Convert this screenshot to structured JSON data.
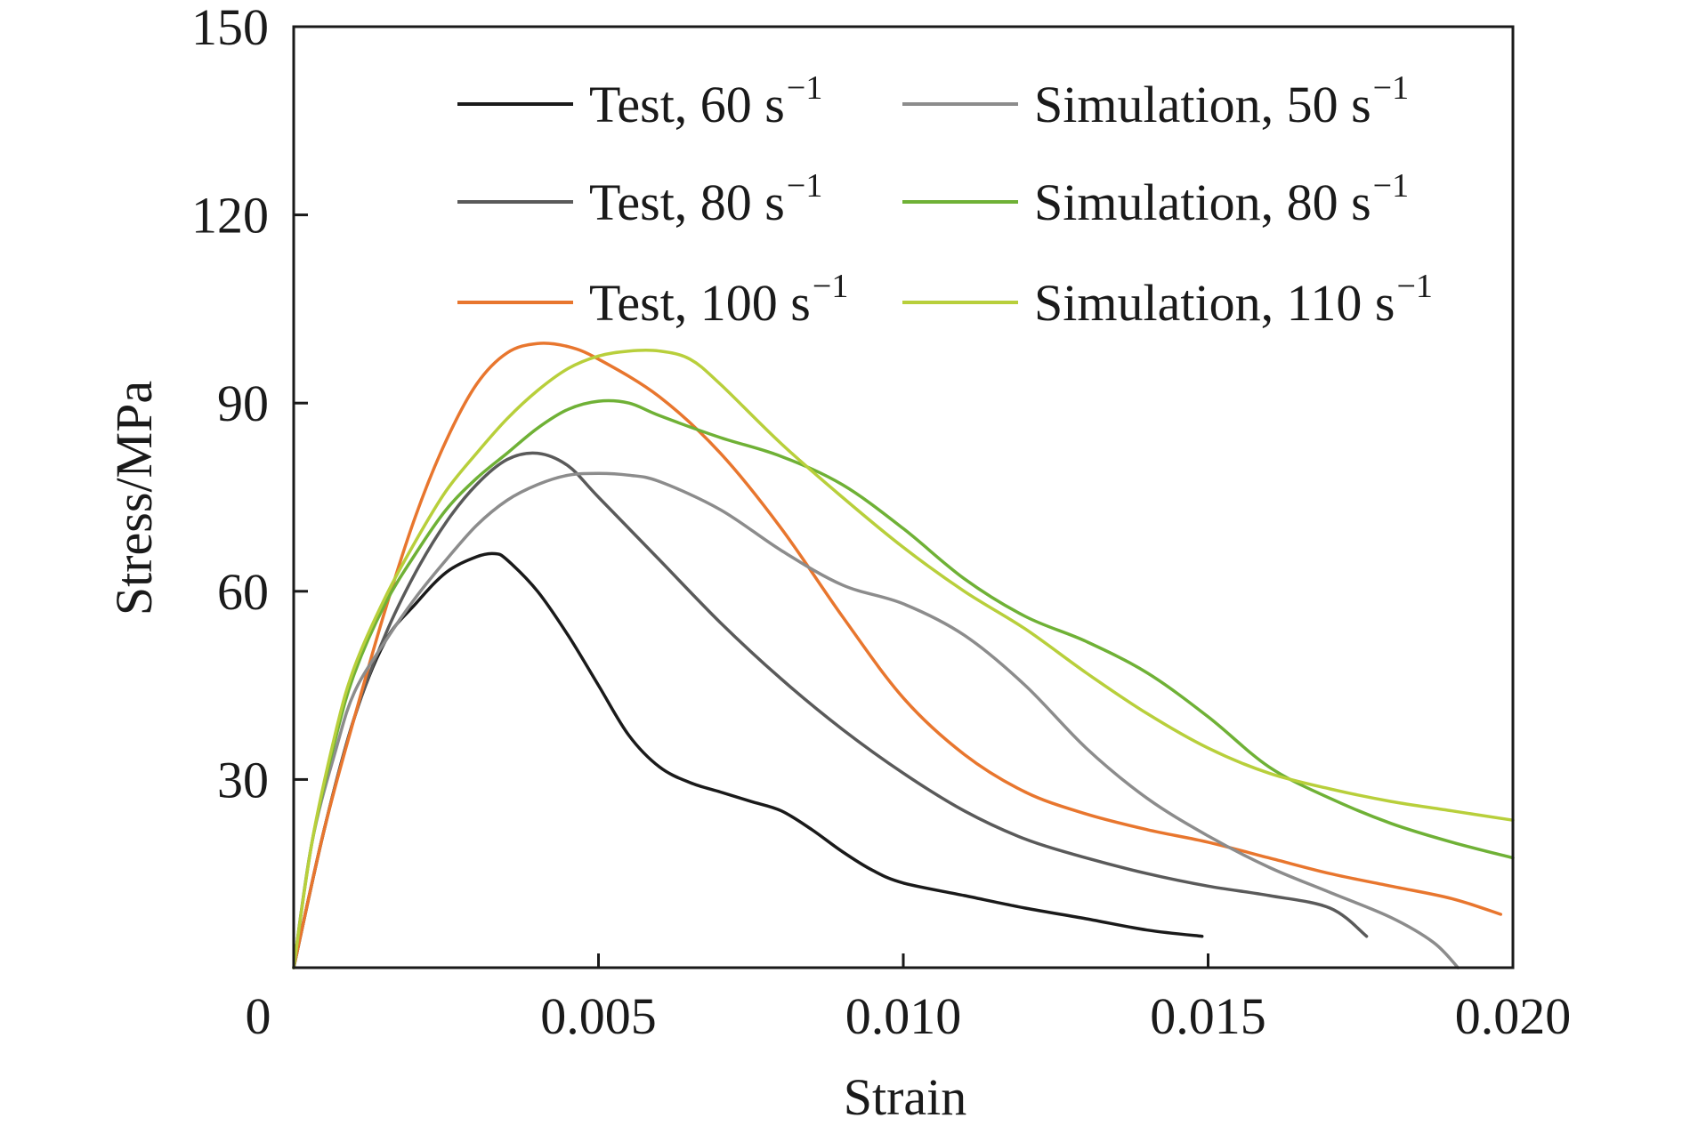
{
  "chart_data": {
    "type": "line",
    "xlabel": "Strain",
    "ylabel": "Stress/MPa",
    "xlim": [
      0,
      0.02
    ],
    "ylim": [
      0,
      150
    ],
    "x_ticks": [
      0,
      0.005,
      0.01,
      0.015,
      0.02
    ],
    "x_tick_labels": [
      "0",
      "0.005",
      "0.010",
      "0.015",
      "0.020"
    ],
    "y_ticks": [
      30,
      60,
      90,
      120,
      150
    ],
    "y_tick_labels": [
      "30",
      "60",
      "90",
      "120",
      "150"
    ],
    "grid": false,
    "legend_position": "top",
    "series": [
      {
        "name": "Test, 60 s",
        "name_sup": "−1",
        "color": "#1a1a1a",
        "points": [
          [
            0,
            0
          ],
          [
            0.0005,
            22
          ],
          [
            0.001,
            40
          ],
          [
            0.0015,
            52
          ],
          [
            0.002,
            58
          ],
          [
            0.0025,
            63
          ],
          [
            0.003,
            65.5
          ],
          [
            0.0033,
            66
          ],
          [
            0.0035,
            65
          ],
          [
            0.004,
            60
          ],
          [
            0.0045,
            53
          ],
          [
            0.005,
            45
          ],
          [
            0.0055,
            37
          ],
          [
            0.006,
            32
          ],
          [
            0.0065,
            29.5
          ],
          [
            0.007,
            28
          ],
          [
            0.0075,
            26.5
          ],
          [
            0.008,
            25
          ],
          [
            0.0085,
            22
          ],
          [
            0.009,
            18.5
          ],
          [
            0.0095,
            15.5
          ],
          [
            0.01,
            13.5
          ],
          [
            0.011,
            11.5
          ],
          [
            0.012,
            9.5
          ],
          [
            0.013,
            7.8
          ],
          [
            0.014,
            6
          ],
          [
            0.0149,
            5
          ]
        ]
      },
      {
        "name": "Test, 80 s",
        "name_sup": "−1",
        "color": "#5a5a5a",
        "points": [
          [
            0,
            0
          ],
          [
            0.0005,
            22
          ],
          [
            0.001,
            40
          ],
          [
            0.0015,
            53
          ],
          [
            0.002,
            63
          ],
          [
            0.0025,
            71
          ],
          [
            0.003,
            77
          ],
          [
            0.0035,
            81
          ],
          [
            0.004,
            82
          ],
          [
            0.0045,
            80
          ],
          [
            0.005,
            75
          ],
          [
            0.006,
            65
          ],
          [
            0.007,
            55
          ],
          [
            0.008,
            46
          ],
          [
            0.009,
            38
          ],
          [
            0.01,
            31
          ],
          [
            0.011,
            25
          ],
          [
            0.012,
            20.5
          ],
          [
            0.013,
            17.5
          ],
          [
            0.014,
            15
          ],
          [
            0.015,
            13
          ],
          [
            0.016,
            11.5
          ],
          [
            0.017,
            9.5
          ],
          [
            0.0176,
            5
          ]
        ]
      },
      {
        "name": "Test, 100 s",
        "name_sup": "−1",
        "color": "#e8762e",
        "points": [
          [
            0,
            0
          ],
          [
            0.0005,
            22
          ],
          [
            0.001,
            40
          ],
          [
            0.0015,
            57
          ],
          [
            0.002,
            72
          ],
          [
            0.0025,
            84
          ],
          [
            0.003,
            93
          ],
          [
            0.0035,
            98
          ],
          [
            0.004,
            99.5
          ],
          [
            0.0045,
            99
          ],
          [
            0.005,
            97
          ],
          [
            0.006,
            91
          ],
          [
            0.007,
            82
          ],
          [
            0.008,
            70
          ],
          [
            0.009,
            56
          ],
          [
            0.01,
            43
          ],
          [
            0.011,
            34
          ],
          [
            0.012,
            28
          ],
          [
            0.013,
            24.5
          ],
          [
            0.014,
            22
          ],
          [
            0.015,
            20
          ],
          [
            0.016,
            17.5
          ],
          [
            0.017,
            15
          ],
          [
            0.018,
            13
          ],
          [
            0.019,
            11
          ],
          [
            0.0198,
            8.5
          ]
        ]
      },
      {
        "name": "Simulation, 50 s",
        "name_sup": "−1",
        "color": "#8c8c8c",
        "points": [
          [
            0,
            0
          ],
          [
            0.0003,
            20
          ],
          [
            0.0007,
            35
          ],
          [
            0.001,
            44
          ],
          [
            0.0015,
            52
          ],
          [
            0.002,
            59
          ],
          [
            0.0025,
            65
          ],
          [
            0.003,
            70.5
          ],
          [
            0.0035,
            74.5
          ],
          [
            0.004,
            77
          ],
          [
            0.0045,
            78.5
          ],
          [
            0.005,
            78.8
          ],
          [
            0.0055,
            78.5
          ],
          [
            0.006,
            77.5
          ],
          [
            0.007,
            73
          ],
          [
            0.008,
            66.5
          ],
          [
            0.009,
            61
          ],
          [
            0.01,
            58
          ],
          [
            0.011,
            53
          ],
          [
            0.012,
            45
          ],
          [
            0.013,
            35
          ],
          [
            0.014,
            27
          ],
          [
            0.015,
            21
          ],
          [
            0.016,
            16
          ],
          [
            0.017,
            12
          ],
          [
            0.018,
            8
          ],
          [
            0.0187,
            4
          ],
          [
            0.0191,
            0
          ]
        ]
      },
      {
        "name": "Simulation, 80 s",
        "name_sup": "−1",
        "color": "#6fb136",
        "points": [
          [
            0,
            0
          ],
          [
            0.0003,
            20
          ],
          [
            0.0007,
            37
          ],
          [
            0.001,
            47
          ],
          [
            0.0015,
            58
          ],
          [
            0.002,
            66
          ],
          [
            0.0025,
            73
          ],
          [
            0.003,
            78
          ],
          [
            0.0035,
            82
          ],
          [
            0.004,
            86
          ],
          [
            0.0045,
            89
          ],
          [
            0.005,
            90.3
          ],
          [
            0.0055,
            90
          ],
          [
            0.006,
            88
          ],
          [
            0.007,
            84.5
          ],
          [
            0.008,
            81.5
          ],
          [
            0.009,
            77
          ],
          [
            0.01,
            70
          ],
          [
            0.011,
            62
          ],
          [
            0.012,
            56
          ],
          [
            0.013,
            52
          ],
          [
            0.014,
            47
          ],
          [
            0.015,
            40
          ],
          [
            0.016,
            32
          ],
          [
            0.017,
            27
          ],
          [
            0.018,
            23
          ],
          [
            0.019,
            20
          ],
          [
            0.02,
            17.5
          ]
        ]
      },
      {
        "name": "Simulation, 110 s",
        "name_sup": "−1",
        "color": "#b8cf3b",
        "points": [
          [
            0,
            0
          ],
          [
            0.0003,
            20
          ],
          [
            0.0007,
            38
          ],
          [
            0.001,
            48
          ],
          [
            0.0015,
            59
          ],
          [
            0.002,
            68
          ],
          [
            0.0025,
            76
          ],
          [
            0.003,
            82
          ],
          [
            0.0035,
            87.5
          ],
          [
            0.004,
            92
          ],
          [
            0.0045,
            95.5
          ],
          [
            0.005,
            97.5
          ],
          [
            0.0055,
            98.3
          ],
          [
            0.006,
            98.3
          ],
          [
            0.0065,
            97
          ],
          [
            0.007,
            93
          ],
          [
            0.008,
            83.5
          ],
          [
            0.009,
            75
          ],
          [
            0.01,
            67
          ],
          [
            0.011,
            60
          ],
          [
            0.012,
            54
          ],
          [
            0.013,
            47
          ],
          [
            0.014,
            40.5
          ],
          [
            0.015,
            35
          ],
          [
            0.016,
            31
          ],
          [
            0.017,
            28.5
          ],
          [
            0.018,
            26.5
          ],
          [
            0.019,
            25
          ],
          [
            0.02,
            23.5
          ]
        ]
      }
    ]
  }
}
